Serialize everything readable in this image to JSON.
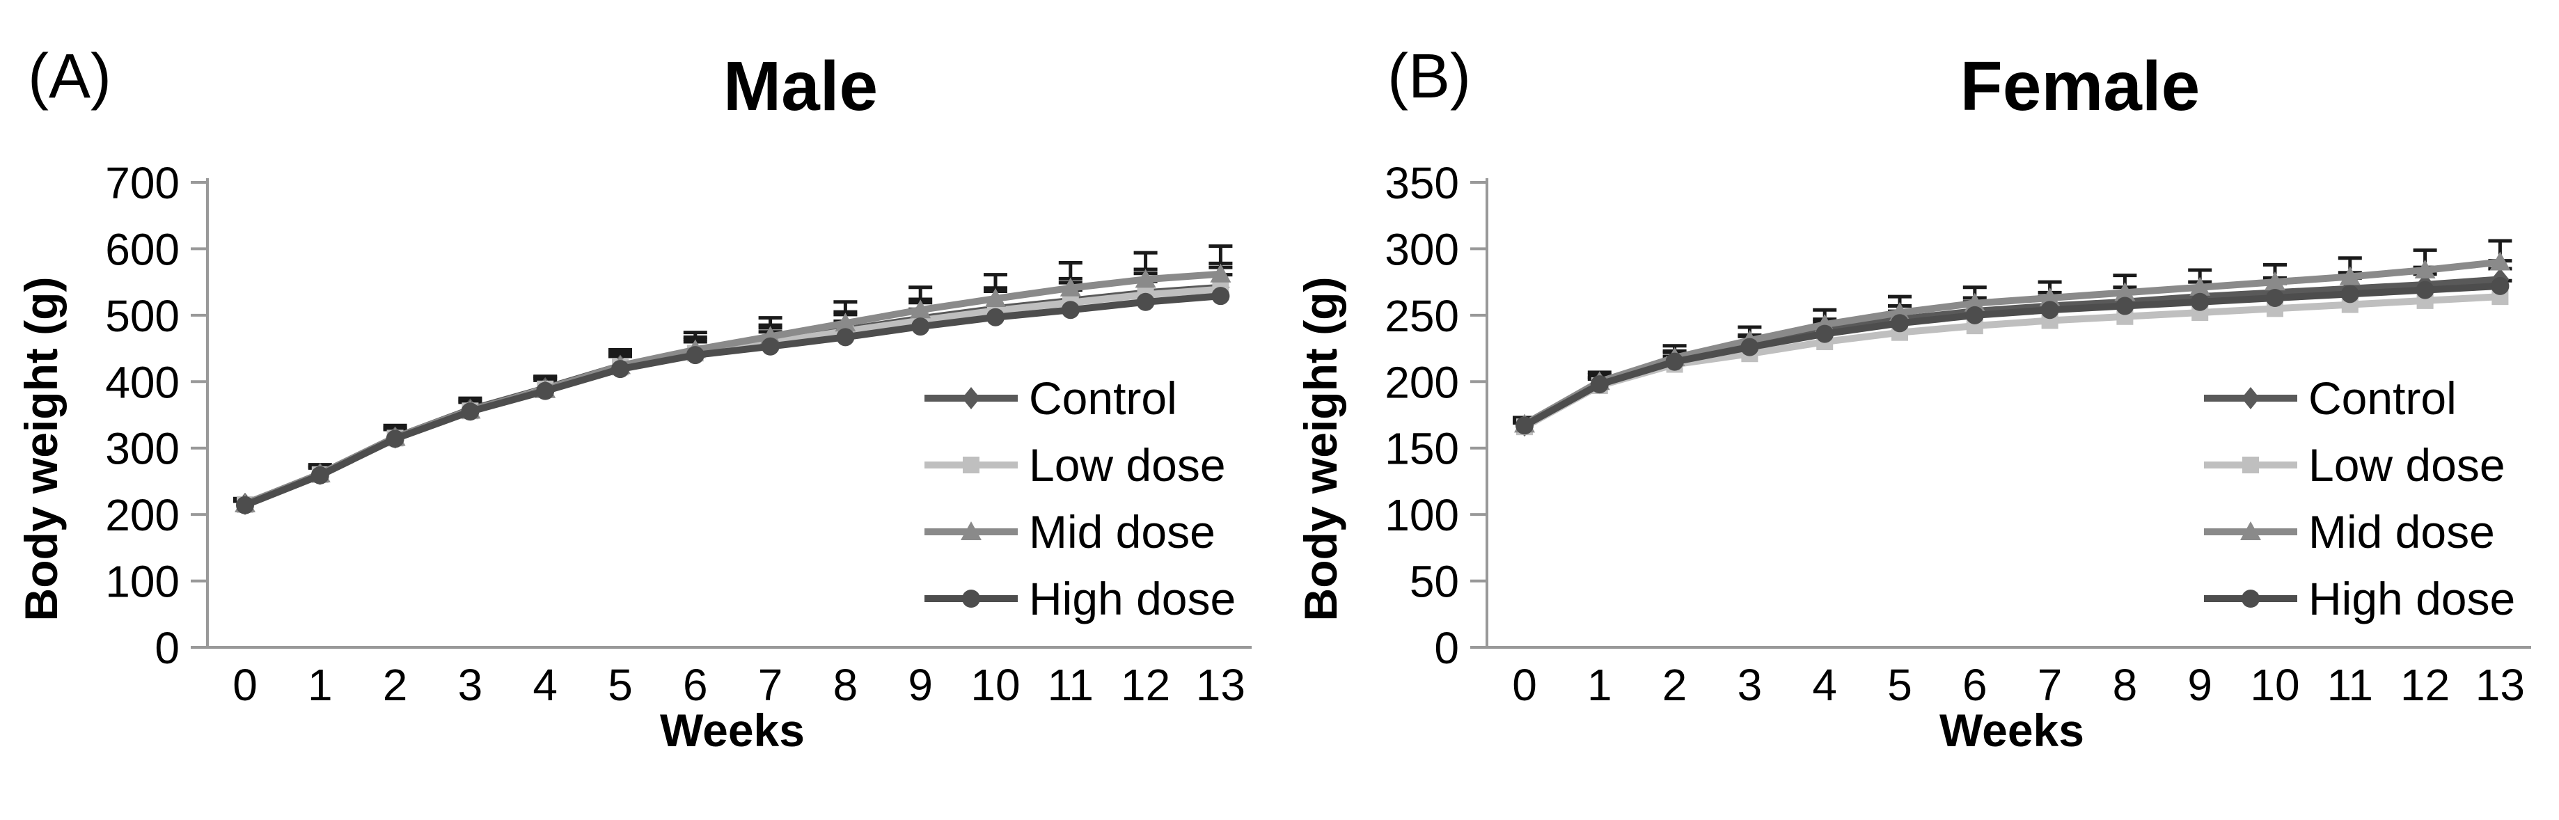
{
  "ui": {
    "background": "#ffffff",
    "axis_color": "#999999",
    "error_bar_color": "#1a1a1a",
    "text_color": "#000000"
  },
  "chart_data": [
    {
      "type": "line",
      "panel_label": "(A)",
      "title": "Male",
      "xlabel": "Weeks",
      "ylabel": "Body weight (g)",
      "ylim": [
        0,
        700
      ],
      "yticks": [
        0,
        100,
        200,
        300,
        400,
        500,
        600,
        700
      ],
      "x": [
        0,
        1,
        2,
        3,
        4,
        5,
        6,
        7,
        8,
        9,
        10,
        11,
        12,
        13
      ],
      "grid": false,
      "legend_position": "inside-right",
      "error_bars": "upper",
      "series": [
        {
          "name": "Control",
          "marker": "diamond",
          "color": "#595959",
          "values": [
            216,
            261,
            316,
            358,
            390,
            424,
            445,
            461,
            478,
            495,
            510,
            522,
            534,
            542
          ],
          "error_upper": [
            7,
            12,
            15,
            15,
            17,
            20,
            22,
            24,
            27,
            29,
            31,
            33,
            35,
            36
          ]
        },
        {
          "name": "Low dose",
          "marker": "square",
          "color": "#bfbfbf",
          "values": [
            215,
            260,
            315,
            356,
            389,
            422,
            443,
            459,
            476,
            492,
            507,
            519,
            531,
            539
          ],
          "error_upper": [
            6,
            11,
            14,
            14,
            16,
            19,
            21,
            22,
            25,
            27,
            29,
            30,
            32,
            33
          ]
        },
        {
          "name": "Mid dose",
          "marker": "triangle",
          "color": "#8a8a8a",
          "values": [
            216,
            261,
            316,
            357,
            388,
            424,
            448,
            468,
            488,
            508,
            525,
            541,
            554,
            562
          ],
          "error_upper": [
            8,
            14,
            18,
            18,
            20,
            24,
            26,
            28,
            32,
            34,
            36,
            38,
            40,
            42
          ]
        },
        {
          "name": "High dose",
          "marker": "circle",
          "color": "#4d4d4d",
          "values": [
            214,
            259,
            314,
            355,
            386,
            419,
            440,
            453,
            467,
            483,
            497,
            508,
            520,
            529
          ],
          "error_upper": [
            6,
            11,
            14,
            14,
            16,
            19,
            20,
            22,
            24,
            26,
            28,
            30,
            31,
            32
          ]
        }
      ]
    },
    {
      "type": "line",
      "panel_label": "(B)",
      "title": "Female",
      "xlabel": "Weeks",
      "ylabel": "Body weight (g)",
      "ylim": [
        0,
        350
      ],
      "yticks": [
        0,
        50,
        100,
        150,
        200,
        250,
        300,
        350
      ],
      "x": [
        0,
        1,
        2,
        3,
        4,
        5,
        6,
        7,
        8,
        9,
        10,
        11,
        12,
        13
      ],
      "grid": false,
      "legend_position": "inside-right",
      "error_bars": "upper",
      "series": [
        {
          "name": "Control",
          "marker": "diamond",
          "color": "#595959",
          "values": [
            167,
            199,
            216,
            227,
            238,
            247,
            253,
            257,
            260,
            264,
            267,
            270,
            273,
            277
          ],
          "error_upper": [
            4,
            6,
            7,
            8,
            9,
            10,
            10,
            10,
            11,
            11,
            11,
            12,
            13,
            14
          ]
        },
        {
          "name": "Low dose",
          "marker": "square",
          "color": "#bfbfbf",
          "values": [
            166,
            197,
            213,
            221,
            230,
            237,
            242,
            246,
            249,
            252,
            255,
            258,
            261,
            264
          ],
          "error_upper": [
            3,
            5,
            6,
            7,
            8,
            8,
            8,
            9,
            9,
            9,
            10,
            10,
            11,
            12
          ]
        },
        {
          "name": "Mid dose",
          "marker": "triangle",
          "color": "#8a8a8a",
          "values": [
            168,
            200,
            218,
            231,
            243,
            252,
            259,
            263,
            267,
            271,
            275,
            279,
            284,
            290
          ],
          "error_upper": [
            5,
            7,
            9,
            10,
            11,
            12,
            12,
            12,
            13,
            13,
            13,
            14,
            15,
            16
          ]
        },
        {
          "name": "High dose",
          "marker": "circle",
          "color": "#4d4d4d",
          "values": [
            167,
            198,
            215,
            226,
            236,
            244,
            250,
            254,
            257,
            260,
            263,
            266,
            269,
            272
          ],
          "error_upper": [
            4,
            5,
            7,
            8,
            9,
            9,
            10,
            10,
            10,
            11,
            11,
            12,
            12,
            13
          ]
        }
      ]
    }
  ]
}
